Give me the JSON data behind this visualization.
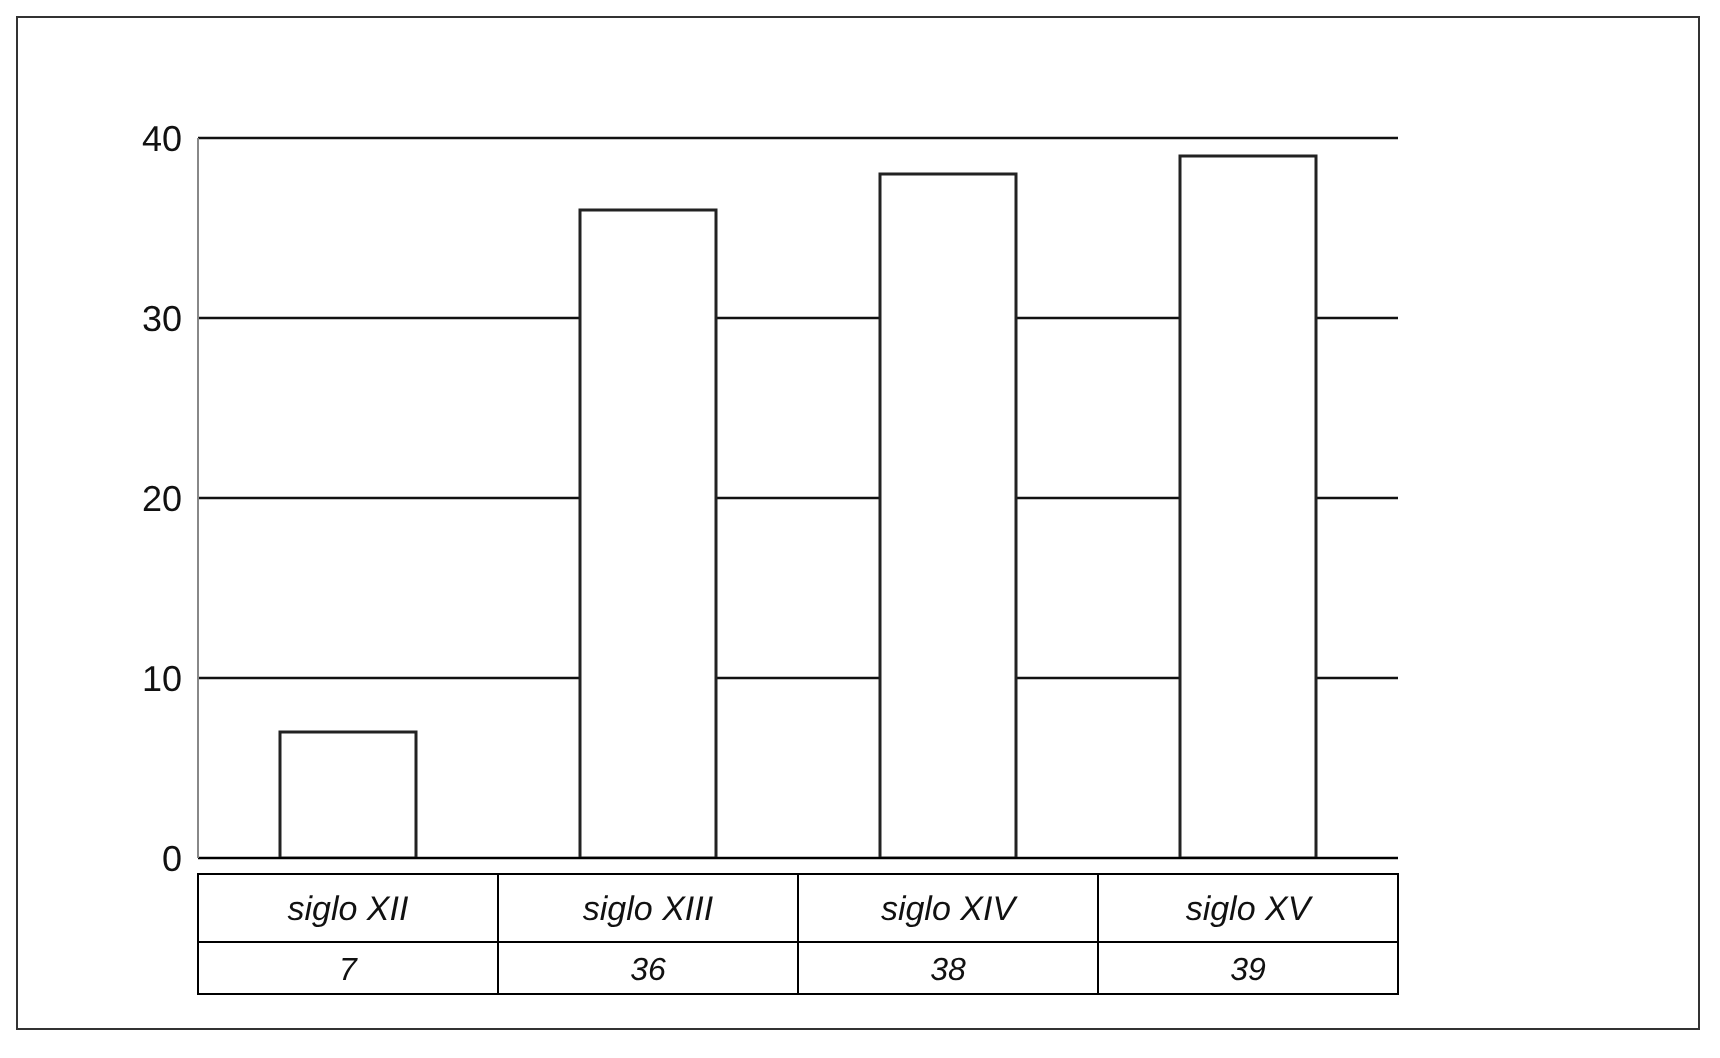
{
  "chart_data": {
    "type": "bar",
    "categories": [
      "siglo XII",
      "siglo XIII",
      "siglo XIV",
      "siglo XV"
    ],
    "values": [
      7,
      36,
      38,
      39
    ],
    "color": "#ffffff",
    "ylim": [
      0,
      40
    ],
    "yticks": [
      0,
      10,
      20,
      30,
      40
    ],
    "grid": "y",
    "data_labels": true
  }
}
